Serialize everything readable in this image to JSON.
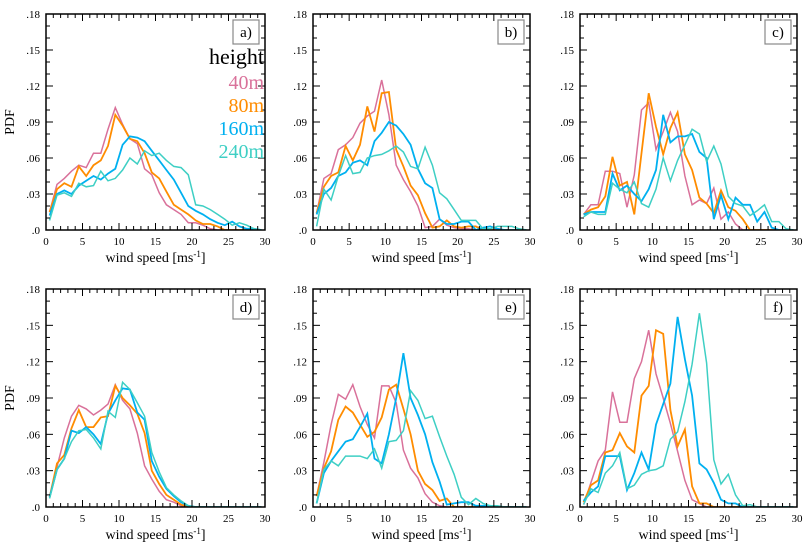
{
  "chart_data": {
    "type": "line",
    "layout": "2x3 grid",
    "legend": {
      "title": "height",
      "placement": "top-right of panel a",
      "entries": [
        {
          "name": "40m",
          "color": "#d9719a"
        },
        {
          "name": "80m",
          "color": "#ff8c00"
        },
        {
          "name": "160m",
          "color": "#00b0f0"
        },
        {
          "name": "240m",
          "color": "#3ecfc4"
        }
      ]
    },
    "xlabel": "wind speed [ms",
    "xlabel_sup": "-1",
    "xlabel_end": "]",
    "ylabel": "PDF",
    "xlim": [
      0,
      30
    ],
    "ylim": [
      0,
      0.18
    ],
    "xticks": [
      0,
      5,
      10,
      15,
      20,
      25,
      30
    ],
    "xtick_labels": [
      "0",
      "5",
      "10",
      "15",
      "20",
      "25",
      "30"
    ],
    "yticks": [
      0,
      0.03,
      0.06,
      0.09,
      0.12,
      0.15,
      0.18
    ],
    "ytick_labels": [
      ".0",
      ".03",
      ".06",
      ".09",
      ".12",
      ".15",
      ".18"
    ],
    "x": [
      0.5,
      1.5,
      2.5,
      3.5,
      4.5,
      5.5,
      6.5,
      7.5,
      8.5,
      9.5,
      10.5,
      11.5,
      12.5,
      13.5,
      14.5,
      15.5,
      16.5,
      17.5,
      18.5,
      19.5,
      20.5,
      21.5,
      22.5,
      23.5,
      24.5,
      25.5,
      26.5,
      27.5,
      28.5,
      29.5
    ],
    "panels": [
      {
        "label": "a)",
        "series": [
          {
            "name": "40m",
            "values": [
              0.015,
              0.038,
              0.043,
              0.049,
              0.054,
              0.052,
              0.064,
              0.064,
              0.084,
              0.102,
              0.088,
              0.076,
              0.072,
              0.051,
              0.046,
              0.031,
              0.021,
              0.017,
              0.013,
              0.006,
              0.006,
              0.004,
              0.001,
              0,
              0,
              0,
              0,
              0,
              0,
              0
            ]
          },
          {
            "name": "80m",
            "values": [
              0.015,
              0.034,
              0.039,
              0.036,
              0.053,
              0.045,
              0.054,
              0.058,
              0.07,
              0.096,
              0.087,
              0.076,
              0.074,
              0.064,
              0.048,
              0.043,
              0.032,
              0.021,
              0.017,
              0.013,
              0.008,
              0.005,
              0.005,
              0.003,
              0,
              0,
              0,
              0,
              0,
              0
            ]
          },
          {
            "name": "160m",
            "values": [
              0.012,
              0.03,
              0.033,
              0.03,
              0.037,
              0.041,
              0.045,
              0.042,
              0.047,
              0.051,
              0.071,
              0.078,
              0.077,
              0.074,
              0.066,
              0.058,
              0.05,
              0.042,
              0.031,
              0.02,
              0.016,
              0.013,
              0.009,
              0.006,
              0.004,
              0.007,
              0.003,
              0.001,
              0.001,
              0
            ]
          },
          {
            "name": "240m",
            "values": [
              0.008,
              0.029,
              0.031,
              0.028,
              0.039,
              0.036,
              0.037,
              0.049,
              0.041,
              0.043,
              0.05,
              0.06,
              0.055,
              0.066,
              0.062,
              0.064,
              0.058,
              0.053,
              0.052,
              0.046,
              0.021,
              0.02,
              0.017,
              0.013,
              0.009,
              0.004,
              0.006,
              0.004,
              0.001,
              0
            ]
          }
        ]
      },
      {
        "label": "b)",
        "series": [
          {
            "name": "40m",
            "values": [
              0.014,
              0.043,
              0.047,
              0.067,
              0.071,
              0.077,
              0.089,
              0.095,
              0.099,
              0.125,
              0.096,
              0.054,
              0.042,
              0.032,
              0.02,
              0.002,
              0.003,
              0.009,
              0.004,
              0.002,
              0.001,
              0.001,
              0,
              0,
              0,
              0,
              0,
              0,
              0,
              0
            ]
          },
          {
            "name": "80m",
            "values": [
              0.014,
              0.036,
              0.045,
              0.048,
              0.07,
              0.058,
              0.071,
              0.103,
              0.082,
              0.114,
              0.115,
              0.067,
              0.053,
              0.037,
              0.029,
              0.014,
              0.002,
              0.003,
              0.008,
              0.003,
              0.002,
              0.003,
              0.003,
              0,
              0,
              0,
              0,
              0,
              0,
              0
            ]
          },
          {
            "name": "160m",
            "values": [
              0.013,
              0.03,
              0.035,
              0.045,
              0.048,
              0.056,
              0.058,
              0.054,
              0.074,
              0.081,
              0.09,
              0.087,
              0.08,
              0.071,
              0.051,
              0.039,
              0.035,
              0.009,
              0.005,
              0.005,
              0.007,
              0.007,
              0,
              0.002,
              0.003,
              0.001,
              0,
              0,
              0,
              0
            ]
          },
          {
            "name": "240m",
            "values": [
              0.003,
              0.034,
              0.025,
              0.045,
              0.062,
              0.047,
              0.048,
              0.06,
              0.062,
              0.063,
              0.066,
              0.07,
              0.065,
              0.053,
              0.051,
              0.069,
              0.054,
              0.031,
              0.026,
              0.017,
              0.008,
              0.008,
              0.008,
              0.001,
              0.001,
              0.003,
              0.003,
              0.003,
              0.001,
              0
            ]
          }
        ]
      },
      {
        "label": "c)",
        "series": [
          {
            "name": "40m",
            "values": [
              0.013,
              0.021,
              0.021,
              0.049,
              0.049,
              0.047,
              0.019,
              0.046,
              0.1,
              0.106,
              0.067,
              0.082,
              0.098,
              0.082,
              0.045,
              0.021,
              0.025,
              0.022,
              0.035,
              0.009,
              0.015,
              0.005,
              0,
              0,
              0,
              0,
              0,
              0,
              0,
              0
            ]
          },
          {
            "name": "80m",
            "values": [
              0.013,
              0.017,
              0.019,
              0.028,
              0.061,
              0.037,
              0.04,
              0.013,
              0.064,
              0.114,
              0.086,
              0.063,
              0.085,
              0.098,
              0.063,
              0.05,
              0.027,
              0.022,
              0.014,
              0.033,
              0.019,
              0.016,
              0.009,
              0,
              0,
              0,
              0,
              0,
              0,
              0
            ]
          },
          {
            "name": "160m",
            "values": [
              0.013,
              0.015,
              0.015,
              0.015,
              0.047,
              0.033,
              0.037,
              0.03,
              0.024,
              0.034,
              0.05,
              0.096,
              0.073,
              0.078,
              0.078,
              0.08,
              0.065,
              0.06,
              0.009,
              0.029,
              0.009,
              0.027,
              0.021,
              0.021,
              0.007,
              0.015,
              0.002,
              0,
              0,
              0
            ]
          },
          {
            "name": "240m",
            "values": [
              0.011,
              0.015,
              0.013,
              0.013,
              0.039,
              0.034,
              0.031,
              0.04,
              0.022,
              0.019,
              0.034,
              0.06,
              0.041,
              0.058,
              0.071,
              0.084,
              0.08,
              0.057,
              0.07,
              0.055,
              0.028,
              0.022,
              0.02,
              0.012,
              0.016,
              0.021,
              0.007,
              0.007,
              0.001,
              0
            ]
          }
        ]
      },
      {
        "label": "d)",
        "series": [
          {
            "name": "40m",
            "values": [
              0.008,
              0.033,
              0.057,
              0.075,
              0.084,
              0.081,
              0.076,
              0.08,
              0.085,
              0.101,
              0.088,
              0.081,
              0.061,
              0.034,
              0.023,
              0.013,
              0.006,
              0.004,
              0.001,
              0,
              0,
              0,
              0,
              0,
              0,
              0,
              0,
              0,
              0,
              0
            ]
          },
          {
            "name": "80m",
            "values": [
              0.008,
              0.036,
              0.043,
              0.065,
              0.08,
              0.066,
              0.066,
              0.074,
              0.075,
              0.1,
              0.09,
              0.084,
              0.077,
              0.061,
              0.03,
              0.019,
              0.01,
              0.006,
              0.002,
              0,
              0,
              0,
              0,
              0,
              0,
              0,
              0,
              0,
              0,
              0
            ]
          },
          {
            "name": "160m",
            "values": [
              0.008,
              0.031,
              0.04,
              0.063,
              0.061,
              0.066,
              0.06,
              0.052,
              0.077,
              0.088,
              0.098,
              0.097,
              0.078,
              0.072,
              0.038,
              0.025,
              0.015,
              0.009,
              0.004,
              0.001,
              0,
              0,
              0,
              0,
              0,
              0,
              0,
              0,
              0,
              0
            ]
          },
          {
            "name": "240m",
            "values": [
              0.007,
              0.031,
              0.04,
              0.054,
              0.063,
              0.064,
              0.057,
              0.048,
              0.079,
              0.074,
              0.103,
              0.097,
              0.086,
              0.075,
              0.045,
              0.029,
              0.016,
              0.01,
              0.005,
              0.001,
              0,
              0,
              0,
              0,
              0,
              0,
              0,
              0,
              0,
              0
            ]
          }
        ]
      },
      {
        "label": "e)",
        "series": [
          {
            "name": "40m",
            "values": [
              0.009,
              0.037,
              0.068,
              0.093,
              0.089,
              0.101,
              0.083,
              0.068,
              0.057,
              0.1,
              0.1,
              0.086,
              0.047,
              0.032,
              0.024,
              0.011,
              0.004,
              0.001,
              0,
              0,
              0,
              0,
              0,
              0,
              0,
              0,
              0,
              0,
              0,
              0
            ]
          },
          {
            "name": "80m",
            "values": [
              0.009,
              0.032,
              0.046,
              0.072,
              0.083,
              0.078,
              0.068,
              0.058,
              0.062,
              0.074,
              0.097,
              0.101,
              0.081,
              0.06,
              0.03,
              0.019,
              0.014,
              0.005,
              0.007,
              0,
              0,
              0,
              0,
              0,
              0,
              0,
              0,
              0,
              0,
              0
            ]
          },
          {
            "name": "160m",
            "values": [
              0.003,
              0.028,
              0.038,
              0.046,
              0.054,
              0.056,
              0.066,
              0.077,
              0.04,
              0.036,
              0.06,
              0.09,
              0.127,
              0.09,
              0.076,
              0.06,
              0.037,
              0.021,
              0.002,
              0.003,
              0.004,
              0.004,
              0.001,
              0.001,
              0.001,
              0,
              0,
              0,
              0,
              0
            ]
          },
          {
            "name": "240m",
            "values": [
              0.003,
              0.031,
              0.038,
              0.034,
              0.042,
              0.042,
              0.042,
              0.04,
              0.048,
              0.032,
              0.054,
              0.055,
              0.063,
              0.096,
              0.088,
              0.073,
              0.075,
              0.058,
              0.042,
              0.027,
              0.008,
              0.002,
              0.007,
              0.003,
              0.001,
              0.001,
              0,
              0,
              0,
              0
            ]
          }
        ]
      },
      {
        "label": "f)",
        "series": [
          {
            "name": "40m",
            "values": [
              0.002,
              0.02,
              0.038,
              0.047,
              0.095,
              0.07,
              0.07,
              0.106,
              0.12,
              0.146,
              0.11,
              0.09,
              0.069,
              0.046,
              0.022,
              0.006,
              0.003,
              0,
              0,
              0,
              0,
              0,
              0,
              0,
              0,
              0,
              0,
              0,
              0,
              0
            ]
          },
          {
            "name": "80m",
            "values": [
              0.004,
              0.018,
              0.022,
              0.045,
              0.047,
              0.061,
              0.05,
              0.045,
              0.092,
              0.1,
              0.146,
              0.143,
              0.08,
              0.05,
              0.064,
              0.017,
              0.003,
              0.003,
              0,
              0,
              0,
              0,
              0,
              0,
              0,
              0,
              0,
              0,
              0,
              0
            ]
          },
          {
            "name": "160m",
            "values": [
              0.005,
              0.012,
              0.017,
              0.042,
              0.042,
              0.042,
              0.014,
              0.028,
              0.045,
              0.031,
              0.068,
              0.085,
              0.102,
              0.157,
              0.122,
              0.092,
              0.036,
              0.031,
              0.02,
              0.006,
              0.003,
              0.003,
              0,
              0,
              0,
              0,
              0,
              0,
              0,
              0
            ]
          },
          {
            "name": "240m",
            "values": [
              0.002,
              0.015,
              0.012,
              0.028,
              0.034,
              0.045,
              0.015,
              0.018,
              0.027,
              0.03,
              0.031,
              0.034,
              0.056,
              0.062,
              0.087,
              0.118,
              0.16,
              0.119,
              0.039,
              0.019,
              0.027,
              0.01,
              0.001,
              0.002,
              0,
              0,
              0,
              0,
              0,
              0
            ]
          }
        ]
      }
    ]
  }
}
